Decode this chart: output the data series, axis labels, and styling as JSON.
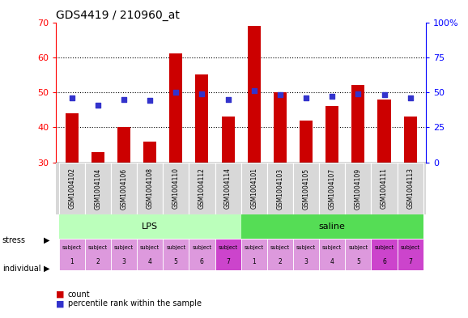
{
  "title": "GDS4419 / 210960_at",
  "samples": [
    "GSM1004102",
    "GSM1004104",
    "GSM1004106",
    "GSM1004108",
    "GSM1004110",
    "GSM1004112",
    "GSM1004114",
    "GSM1004101",
    "GSM1004103",
    "GSM1004105",
    "GSM1004107",
    "GSM1004109",
    "GSM1004111",
    "GSM1004113"
  ],
  "counts": [
    44,
    33,
    40,
    36,
    61,
    55,
    43,
    69,
    50,
    42,
    46,
    52,
    48,
    43
  ],
  "percentiles": [
    46,
    41,
    45,
    44,
    50,
    49,
    45,
    51,
    48,
    46,
    47,
    49,
    48,
    46
  ],
  "bar_bottom": 30,
  "ylim_left": [
    30,
    70
  ],
  "ylim_right": [
    0,
    100
  ],
  "yticks_left": [
    30,
    40,
    50,
    60,
    70
  ],
  "yticks_right": [
    0,
    25,
    50,
    75,
    100
  ],
  "bar_color": "#cc0000",
  "dot_color": "#3333cc",
  "lps_color": "#bbffbb",
  "saline_color": "#55dd55",
  "indiv_light": "#dd99dd",
  "indiv_dark": "#cc44cc",
  "sample_bg": "#d8d8d8",
  "indiv_colors": [
    "#dd99dd",
    "#dd99dd",
    "#dd99dd",
    "#dd99dd",
    "#dd99dd",
    "#dd99dd",
    "#cc44cc",
    "#dd99dd",
    "#dd99dd",
    "#dd99dd",
    "#dd99dd",
    "#dd99dd",
    "#cc44cc",
    "#cc44cc"
  ],
  "individuals": [
    "subject\n1",
    "subject\n2",
    "subject\n3",
    "subject\n4",
    "subject\n5",
    "subject\n6",
    "subject\n7",
    "subject\n1",
    "subject\n2",
    "subject\n3",
    "subject\n4",
    "subject\n5",
    "subject\n6",
    "subject\n7"
  ]
}
